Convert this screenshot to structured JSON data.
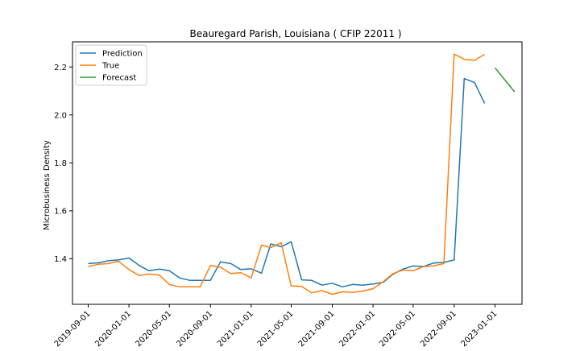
{
  "chart_data": {
    "type": "line",
    "title": "Beauregard Parish, Louisiana ( CFIP 22011 )",
    "xlabel": "",
    "ylabel": "Microbusiness Density",
    "x_range": [
      "2019-07-16",
      "2023-03-23"
    ],
    "ylim": [
      1.21,
      2.305
    ],
    "grid": false,
    "legend": "top-left",
    "x_tick_labels": [
      "2019-09-01",
      "2020-01-01",
      "2020-05-01",
      "2020-09-01",
      "2021-01-01",
      "2021-05-01",
      "2021-09-01",
      "2022-01-01",
      "2022-05-01",
      "2022-09-01",
      "2023-01-01"
    ],
    "y_ticks": [
      1.4,
      1.6,
      1.8,
      2.0,
      2.2
    ],
    "y_tick_labels": [
      "1.4",
      "1.6",
      "1.8",
      "2.0",
      "2.2"
    ],
    "series": [
      {
        "name": "Prediction",
        "color": "#1f77b4",
        "x": [
          "2019-09-01",
          "2019-10-01",
          "2019-11-01",
          "2019-12-01",
          "2020-01-01",
          "2020-02-01",
          "2020-03-01",
          "2020-04-01",
          "2020-05-01",
          "2020-06-01",
          "2020-07-01",
          "2020-08-01",
          "2020-09-01",
          "2020-10-01",
          "2020-11-01",
          "2020-12-01",
          "2021-01-01",
          "2021-02-01",
          "2021-03-01",
          "2021-04-01",
          "2021-05-01",
          "2021-06-01",
          "2021-07-01",
          "2021-08-01",
          "2021-09-01",
          "2021-10-01",
          "2021-11-01",
          "2021-12-01",
          "2022-01-01",
          "2022-02-01",
          "2022-03-01",
          "2022-04-01",
          "2022-05-01",
          "2022-06-01",
          "2022-07-01",
          "2022-08-01",
          "2022-09-01",
          "2022-10-01",
          "2022-11-01",
          "2022-12-01"
        ],
        "y": [
          1.38,
          1.383,
          1.392,
          1.395,
          1.403,
          1.372,
          1.35,
          1.357,
          1.35,
          1.32,
          1.31,
          1.31,
          1.31,
          1.387,
          1.38,
          1.355,
          1.358,
          1.34,
          1.462,
          1.45,
          1.471,
          1.312,
          1.31,
          1.29,
          1.298,
          1.283,
          1.293,
          1.29,
          1.295,
          1.302,
          1.335,
          1.357,
          1.37,
          1.368,
          1.382,
          1.385,
          1.395,
          2.152,
          2.135,
          2.048
        ]
      },
      {
        "name": "True",
        "color": "#ff7f0e",
        "x": [
          "2019-09-01",
          "2019-10-01",
          "2019-11-01",
          "2019-12-01",
          "2020-01-01",
          "2020-02-01",
          "2020-03-01",
          "2020-04-01",
          "2020-05-01",
          "2020-06-01",
          "2020-07-01",
          "2020-08-01",
          "2020-09-01",
          "2020-10-01",
          "2020-11-01",
          "2020-12-01",
          "2021-01-01",
          "2021-02-01",
          "2021-03-01",
          "2021-04-01",
          "2021-05-01",
          "2021-06-01",
          "2021-07-01",
          "2021-08-01",
          "2021-09-01",
          "2021-10-01",
          "2021-11-01",
          "2021-12-01",
          "2022-01-01",
          "2022-02-01",
          "2022-03-01",
          "2022-04-01",
          "2022-05-01",
          "2022-06-01",
          "2022-07-01",
          "2022-08-01",
          "2022-09-01",
          "2022-10-01",
          "2022-11-01",
          "2022-12-01"
        ],
        "y": [
          1.368,
          1.377,
          1.38,
          1.39,
          1.355,
          1.33,
          1.337,
          1.332,
          1.293,
          1.283,
          1.283,
          1.283,
          1.372,
          1.365,
          1.338,
          1.342,
          1.32,
          1.457,
          1.447,
          1.467,
          1.287,
          1.285,
          1.258,
          1.267,
          1.252,
          1.262,
          1.26,
          1.265,
          1.275,
          1.305,
          1.338,
          1.353,
          1.35,
          1.368,
          1.37,
          1.38,
          2.254,
          2.232,
          2.228,
          2.253
        ]
      },
      {
        "name": "Forecast",
        "color": "#2ca02c",
        "x": [
          "2023-01-01",
          "2023-02-01",
          "2023-03-01"
        ],
        "y": [
          2.197,
          2.144,
          2.096
        ]
      }
    ]
  }
}
